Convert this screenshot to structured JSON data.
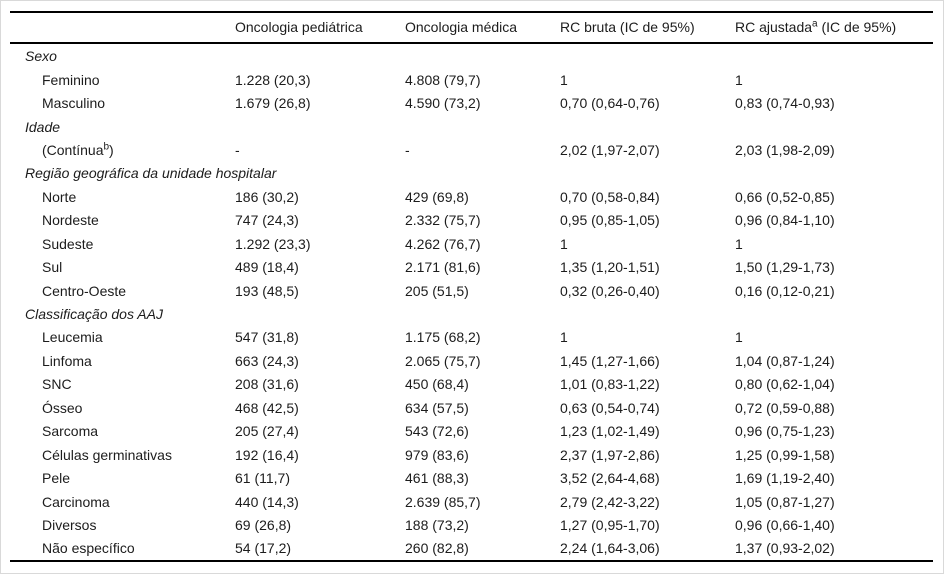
{
  "table": {
    "header": {
      "col1": "",
      "col2": "Oncologia pediátrica",
      "col3": "Oncologia médica",
      "col4": "RC bruta (IC de 95%)",
      "col5": {
        "pre": "RC ajustada",
        "sup": "a",
        "post": " (IC de 95%)"
      }
    },
    "rows": [
      {
        "type": "section",
        "label": "Sexo",
        "cells": [
          "",
          "",
          "",
          ""
        ]
      },
      {
        "type": "item",
        "label": "Feminino",
        "cells": [
          "1.228 (20,3)",
          "4.808 (79,7)",
          "1",
          "1"
        ]
      },
      {
        "type": "item",
        "label": "Masculino",
        "cells": [
          "1.679 (26,8)",
          "4.590 (73,2)",
          "0,70 (0,64-0,76)",
          "0,83 (0,74-0,93)"
        ]
      },
      {
        "type": "section",
        "label": "Idade",
        "cells": [
          "",
          "",
          "",
          ""
        ]
      },
      {
        "type": "item",
        "label": "(Contínua",
        "sup": "b",
        "label_after": ")",
        "cells": [
          "-",
          "-",
          "2,02 (1,97-2,07)",
          "2,03 (1,98-2,09)"
        ]
      },
      {
        "type": "section",
        "label": "Região geográfica da unidade hospitalar",
        "cells": [
          "",
          "",
          "",
          ""
        ]
      },
      {
        "type": "item",
        "label": "Norte",
        "cells": [
          "186 (30,2)",
          "429 (69,8)",
          "0,70 (0,58-0,84)",
          "0,66 (0,52-0,85)"
        ]
      },
      {
        "type": "item",
        "label": "Nordeste",
        "cells": [
          "747 (24,3)",
          "2.332 (75,7)",
          "0,95 (0,85-1,05)",
          "0,96 (0,84-1,10)"
        ]
      },
      {
        "type": "item",
        "label": "Sudeste",
        "cells": [
          "1.292 (23,3)",
          "4.262 (76,7)",
          "1",
          "1"
        ]
      },
      {
        "type": "item",
        "label": "Sul",
        "cells": [
          "489 (18,4)",
          "2.171 (81,6)",
          "1,35 (1,20-1,51)",
          "1,50 (1,29-1,73)"
        ]
      },
      {
        "type": "item",
        "label": "Centro-Oeste",
        "cells": [
          "193 (48,5)",
          "205 (51,5)",
          "0,32 (0,26-0,40)",
          "0,16 (0,12-0,21)"
        ]
      },
      {
        "type": "section",
        "label": "Classificação dos AAJ",
        "cells": [
          "",
          "",
          "",
          ""
        ]
      },
      {
        "type": "item",
        "label": "Leucemia",
        "cells": [
          "547 (31,8)",
          "1.175 (68,2)",
          "1",
          "1"
        ]
      },
      {
        "type": "item",
        "label": "Linfoma",
        "cells": [
          "663 (24,3)",
          "2.065 (75,7)",
          "1,45 (1,27-1,66)",
          "1,04 (0,87-1,24)"
        ]
      },
      {
        "type": "item",
        "label": "SNC",
        "cells": [
          "208 (31,6)",
          "450 (68,4)",
          "1,01 (0,83-1,22)",
          "0,80 (0,62-1,04)"
        ]
      },
      {
        "type": "item",
        "label": "Ósseo",
        "cells": [
          "468 (42,5)",
          "634 (57,5)",
          "0,63 (0,54-0,74)",
          "0,72 (0,59-0,88)"
        ]
      },
      {
        "type": "item",
        "label": "Sarcoma",
        "cells": [
          "205 (27,4)",
          "543 (72,6)",
          "1,23 (1,02-1,49)",
          "0,96 (0,75-1,23)"
        ]
      },
      {
        "type": "item",
        "label": "Células germinativas",
        "cells": [
          "192 (16,4)",
          "979 (83,6)",
          "2,37 (1,97-2,86)",
          "1,25 (0,99-1,58)"
        ]
      },
      {
        "type": "item",
        "label": "Pele",
        "cells": [
          "61 (11,7)",
          "461 (88,3)",
          "3,52 (2,64-4,68)",
          "1,69 (1,19-2,40)"
        ]
      },
      {
        "type": "item",
        "label": "Carcinoma",
        "cells": [
          "440 (14,3)",
          "2.639 (85,7)",
          "2,79 (2,42-3,22)",
          "1,05 (0,87-1,27)"
        ]
      },
      {
        "type": "item",
        "label": "Diversos",
        "cells": [
          "69 (26,8)",
          "188 (73,2)",
          "1,27 (0,95-1,70)",
          "0,96 (0,66-1,40)"
        ]
      },
      {
        "type": "item",
        "label": "Não específico",
        "cells": [
          "54 (17,2)",
          "260 (82,8)",
          "2,24 (1,64-3,06)",
          "1,37 (0,93-2,02)"
        ]
      }
    ],
    "colors": {
      "rule": "#000000",
      "frame_border": "#d9d9d9",
      "text": "#1c1c1c",
      "background": "#ffffff"
    }
  }
}
